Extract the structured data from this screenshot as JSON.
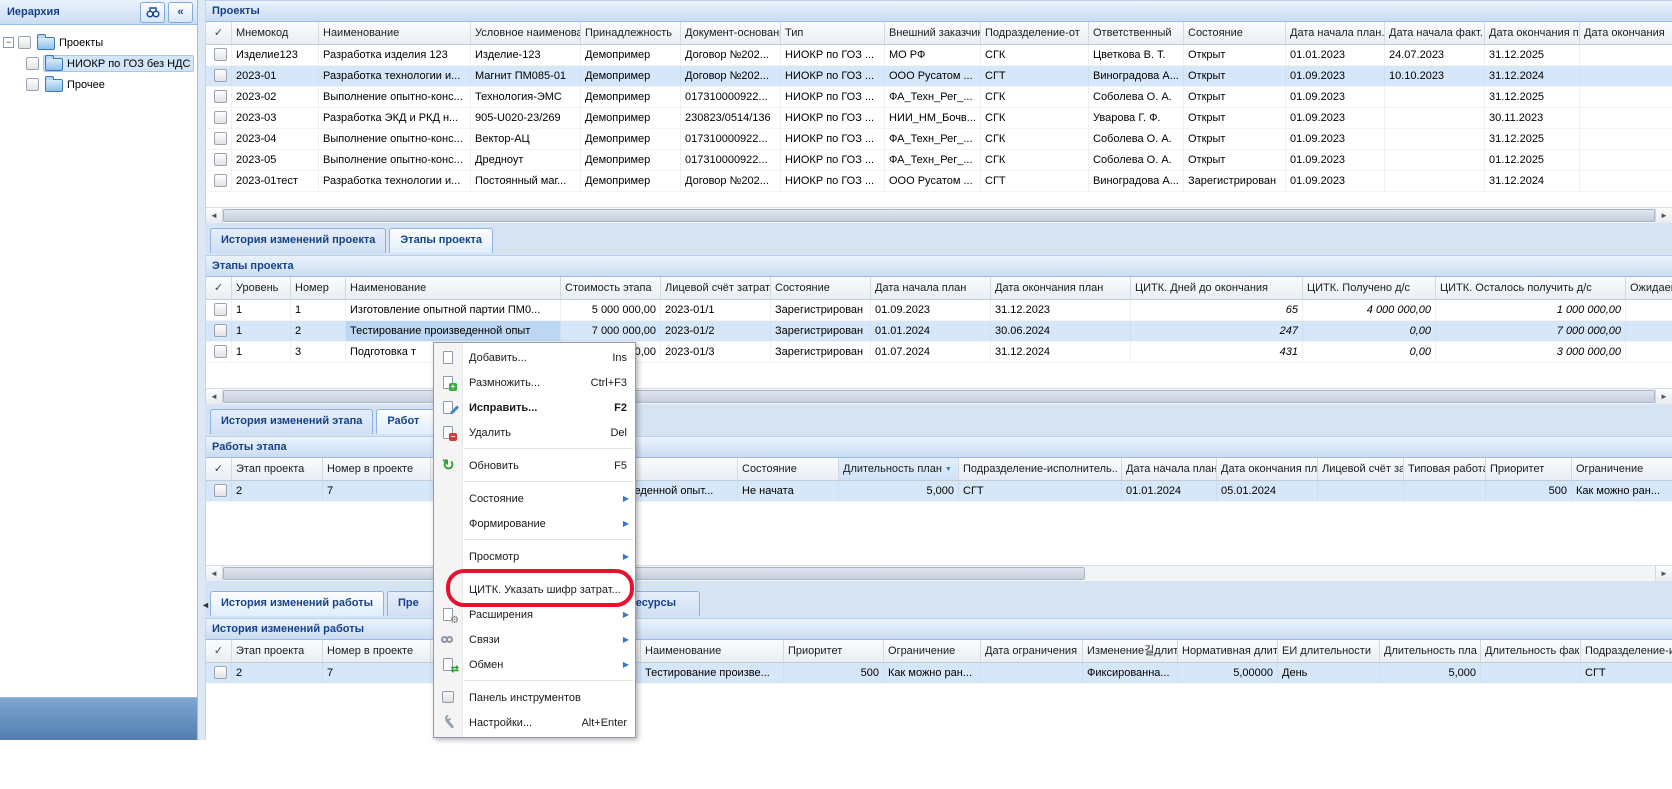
{
  "colors": {
    "accent": "#15428b",
    "selection": "#d7e7fa",
    "annotation_red": "#e8112d"
  },
  "sidebar": {
    "title": "Иерархия",
    "buttons": [
      {
        "name": "find-button",
        "icon": "binoculars-icon"
      },
      {
        "name": "collapse-button",
        "icon": "collapse-left-icon",
        "glyph": "«"
      }
    ],
    "tree": [
      {
        "label": "Проекты",
        "level": 0,
        "expanded": true,
        "selected": false
      },
      {
        "label": "НИОКР по ГОЗ без НДС",
        "level": 1,
        "selected": true
      },
      {
        "label": "Прочее",
        "level": 1,
        "selected": false
      }
    ]
  },
  "projects": {
    "title": "Проекты",
    "columns": [
      "✓",
      "Мнемокод",
      "Наименование",
      "Условное наименование",
      "Принадлежность",
      "Документ-основание",
      "Тип",
      "Внешний заказчик",
      "Подразделение-от",
      "Ответственный",
      "Состояние",
      "Дата начала план.",
      "Дата начала факт.",
      "Дата окончания п.",
      "Дата окончания"
    ],
    "rows": [
      [
        "",
        "Изделие123",
        "Разработка изделия 123",
        "Изделие-123",
        "Демопример",
        "Договор №202...",
        "НИОКР по ГОЗ ...",
        "МО РФ",
        "СГК",
        "Цветкова В. Т.",
        "Открыт",
        "01.01.2023",
        "24.07.2023",
        "31.12.2025",
        ""
      ],
      [
        "",
        "2023-01",
        "Разработка технологии и...",
        "Магнит ПМ085-01",
        "Демопример",
        "Договор №202...",
        "НИОКР по ГОЗ ...",
        "ООО Русатом ...",
        "СГТ",
        "Виноградова А...",
        "Открыт",
        "01.09.2023",
        "10.10.2023",
        "31.12.2024",
        ""
      ],
      [
        "",
        "2023-02",
        "Выполнение опытно-конс...",
        "Технология-ЭМС",
        "Демопример",
        "017310000922...",
        "НИОКР по ГОЗ ...",
        "ФА_Техн_Рег_...",
        "СГК",
        "Соболева О. А.",
        "Открыт",
        "01.09.2023",
        "",
        "31.12.2025",
        ""
      ],
      [
        "",
        "2023-03",
        "Разработка ЭКД и РКД н...",
        "905-U020-23/269",
        "Демопример",
        "230823/0514/136",
        "НИОКР по ГОЗ ...",
        "НИИ_НМ_Бочв...",
        "СГК",
        "Уварова Г. Ф.",
        "Открыт",
        "01.09.2023",
        "",
        "30.11.2023",
        ""
      ],
      [
        "",
        "2023-04",
        "Выполнение опытно-конс...",
        "Вектор-АЦ",
        "Демопример",
        "017310000922...",
        "НИОКР по ГОЗ ...",
        "ФА_Техн_Рег_...",
        "СГК",
        "Соболева О. А.",
        "Открыт",
        "01.09.2023",
        "",
        "31.12.2025",
        ""
      ],
      [
        "",
        "2023-05",
        "Выполнение опытно-конс...",
        "Дредноут",
        "Демопример",
        "017310000922...",
        "НИОКР по ГОЗ ...",
        "ФА_Техн_Рег_...",
        "СГК",
        "Соболева О. А.",
        "Открыт",
        "01.09.2023",
        "",
        "01.12.2025",
        ""
      ],
      [
        "",
        "2023-01тест",
        "Разработка технологии и...",
        "Постоянный маг...",
        "Демопример",
        "Договор №202...",
        "НИОКР по ГОЗ ...",
        "ООО Русатом ...",
        "СГТ",
        "Виноградова А...",
        "Зарегистрирован",
        "01.09.2023",
        "",
        "31.12.2024",
        ""
      ]
    ],
    "selected_row": 1
  },
  "project_tabs": [
    {
      "label": "История изменений проекта",
      "active": false
    },
    {
      "label": "Этапы проекта",
      "active": true
    }
  ],
  "stages": {
    "title": "Этапы проекта",
    "columns": [
      "✓",
      "Уровень",
      "Номер",
      "Наименование",
      "Стоимость этапа",
      "Лицевой счёт затрат.",
      "Состояние",
      "Дата начала план",
      "Дата окончания план",
      "ЦИТК. Дней до окончания",
      "ЦИТК. Получено д/с",
      "ЦИТК. Осталось получить д/с",
      "Ожидаемы"
    ],
    "rows": [
      [
        "",
        "1",
        "1",
        "Изготовление опытной партии ПМ0...",
        "5 000 000,00",
        "2023-01/1",
        "Зарегистрирован",
        "01.09.2023",
        "31.12.2023",
        "65",
        "4 000 000,00",
        "1 000 000,00",
        ""
      ],
      [
        "",
        "1",
        "2",
        "Тестирование произведенной опыт",
        "7 000 000,00",
        "2023-01/2",
        "Зарегистрирован",
        "01.01.2024",
        "30.06.2024",
        "247",
        "0,00",
        "7 000 000,00",
        ""
      ],
      [
        "",
        "1",
        "3",
        "Подготовка т",
        "3 000 000,00",
        "2023-01/3",
        "Зарегистрирован",
        "01.07.2024",
        "31.12.2024",
        "431",
        "0,00",
        "3 000 000,00",
        ""
      ]
    ],
    "selected_row": 1
  },
  "stage_tabs": [
    {
      "label": "История изменений этапа",
      "active": false
    },
    {
      "label": "Работ",
      "active": true
    }
  ],
  "works": {
    "title": "Работы этапа",
    "columns": [
      "✓",
      "Этап проекта",
      "Номер в проекте",
      "",
      "Наименование",
      "Состояние",
      "Длительность план",
      "Подразделение-исполнитель..",
      "Дата начала план.",
      "Дата окончания план",
      "Лицевой счёт затр",
      "Типовая работа",
      "Приоритет",
      "Ограничение"
    ],
    "sorted_column": "Длительность план",
    "sort_direction": "desc",
    "rows": [
      [
        "",
        "2",
        "7",
        "",
        "Тестирование произведенной опыт...",
        "Не начата",
        "5,000",
        "СГТ",
        "01.01.2024",
        "05.01.2024",
        "",
        "",
        "500",
        "Как можно ран..."
      ]
    ],
    "selected_row": 0
  },
  "work_tabs": [
    {
      "label": "История изменений работы",
      "active": true
    },
    {
      "label": "Пре",
      "active": false
    },
    {
      "label": "ресурсы",
      "active": false
    }
  ],
  "history": {
    "title": "История изменений работы",
    "columns": [
      "✓",
      "Этап проекта",
      "Номер в проекте",
      "",
      "Наименование",
      "Приоритет",
      "Ограничение",
      "Дата ограничения",
      "Изменение길длител",
      "Нормативная длит",
      "ЕИ длительности",
      "Длительность пла",
      "Длительность фак",
      "Подразделение-и"
    ],
    "rows": [
      [
        "",
        "2",
        "7",
        "",
        "Тестирование произве...",
        "500",
        "Как можно ран...",
        "",
        "Фиксированна...",
        "5,00000",
        "День",
        "5,000",
        "",
        "СГТ"
      ]
    ],
    "selected_row": 0
  },
  "context_menu": {
    "items": [
      {
        "label": "Добавить...",
        "shortcut": "Ins",
        "icon": "new-page-icon"
      },
      {
        "label": "Размножить...",
        "shortcut": "Ctrl+F3",
        "icon": "duplicate-icon"
      },
      {
        "label": "Исправить...",
        "shortcut": "F2",
        "icon": "edit-icon",
        "bold": true
      },
      {
        "label": "Удалить",
        "shortcut": "Del",
        "icon": "delete-icon"
      },
      {
        "type": "sep"
      },
      {
        "label": "Обновить",
        "shortcut": "F5",
        "icon": "refresh-icon"
      },
      {
        "type": "sep"
      },
      {
        "label": "Состояние",
        "submenu": true
      },
      {
        "label": "Формирование",
        "submenu": true
      },
      {
        "type": "sep"
      },
      {
        "label": "Просмотр",
        "submenu": true
      },
      {
        "type": "sep"
      },
      {
        "label": "ЦИТК. Указать шифр затрат...",
        "highlighted": true
      },
      {
        "label": "Расширения",
        "submenu": true,
        "icon": "extensions-icon"
      },
      {
        "label": "Связи",
        "submenu": true,
        "icon": "links-icon"
      },
      {
        "label": "Обмен",
        "submenu": true,
        "icon": "exchange-icon"
      },
      {
        "type": "sep"
      },
      {
        "label": "Панель инструментов",
        "icon": "toolbar-checkbox-icon"
      },
      {
        "label": "Настройки...",
        "shortcut": "Alt+Enter",
        "icon": "settings-icon"
      }
    ]
  },
  "annotation": {
    "shape": "rounded-rectangle",
    "color": "#e8112d",
    "target": "ЦИТК. Указать шифр затрат..."
  }
}
